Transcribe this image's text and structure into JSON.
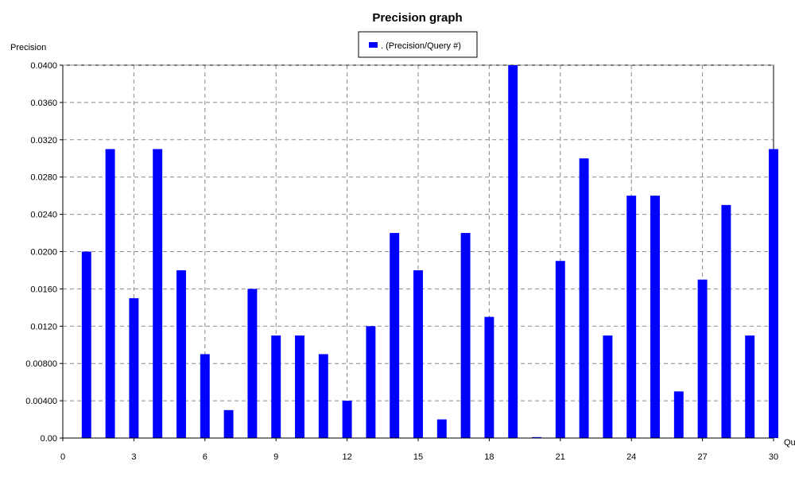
{
  "chart_data": {
    "type": "bar",
    "title": "Precision graph",
    "ylabel": "Precision",
    "xlabel": "Qu",
    "ylim": [
      0,
      0.04
    ],
    "xlim": [
      0,
      30
    ],
    "grid": true,
    "legend": {
      "position": "top-center",
      "label": ". (Precision/Query #)"
    },
    "series": [
      {
        "name": ". (Precision/Query #)",
        "color": "#0000ff",
        "x": [
          1,
          2,
          3,
          4,
          5,
          6,
          7,
          8,
          9,
          10,
          11,
          12,
          13,
          14,
          15,
          16,
          17,
          18,
          19,
          20,
          21,
          22,
          23,
          24,
          25,
          26,
          27,
          28,
          29,
          30
        ],
        "values": [
          0.02,
          0.031,
          0.015,
          0.031,
          0.018,
          0.009,
          0.003,
          0.016,
          0.011,
          0.011,
          0.009,
          0.004,
          0.012,
          0.022,
          0.018,
          0.002,
          0.022,
          0.013,
          0.04,
          0.0001,
          0.019,
          0.03,
          0.011,
          0.026,
          0.026,
          0.005,
          0.017,
          0.025,
          0.011,
          0.031
        ]
      }
    ],
    "x_ticks": [
      "0",
      "3",
      "6",
      "9",
      "12",
      "15",
      "18",
      "21",
      "24",
      "27",
      "30"
    ],
    "y_ticks": [
      "0.00",
      "0.00400",
      "0.00800",
      "0.0120",
      "0.0160",
      "0.0200",
      "0.0240",
      "0.0280",
      "0.0320",
      "0.0360",
      "0.0400"
    ]
  }
}
